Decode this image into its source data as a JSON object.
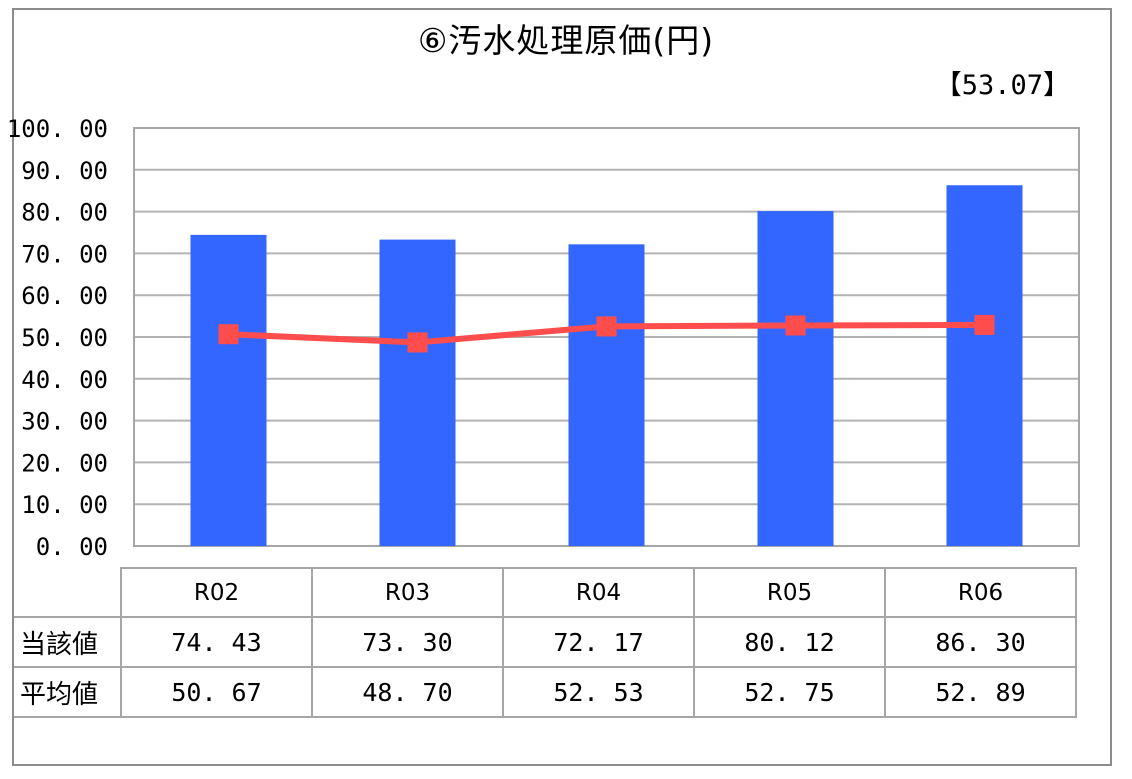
{
  "title": "⑥汚水処理原価(円)",
  "reference_value": "【53.07】",
  "chart_data": {
    "type": "bar",
    "categories": [
      "R02",
      "R03",
      "R04",
      "R05",
      "R06"
    ],
    "series": [
      {
        "name": "当該値",
        "type": "bar",
        "color": "#3366ff",
        "values": [
          74.43,
          73.3,
          72.17,
          80.12,
          86.3
        ],
        "labels": [
          "74. 43",
          "73. 30",
          "72. 17",
          "80. 12",
          "86. 30"
        ]
      },
      {
        "name": "平均値",
        "type": "line",
        "color": "#ff4d4d",
        "values": [
          50.67,
          48.7,
          52.53,
          52.75,
          52.89
        ],
        "labels": [
          "50. 67",
          "48. 70",
          "52. 53",
          "52. 75",
          "52. 89"
        ]
      }
    ],
    "ylim": [
      0,
      100
    ],
    "yticks": [
      "0. 00",
      "10. 00",
      "20. 00",
      "30. 00",
      "40. 00",
      "50. 00",
      "60. 00",
      "70. 00",
      "80. 00",
      "90. 00",
      "100. 00"
    ],
    "grid": true,
    "legend": "data table below chart"
  }
}
